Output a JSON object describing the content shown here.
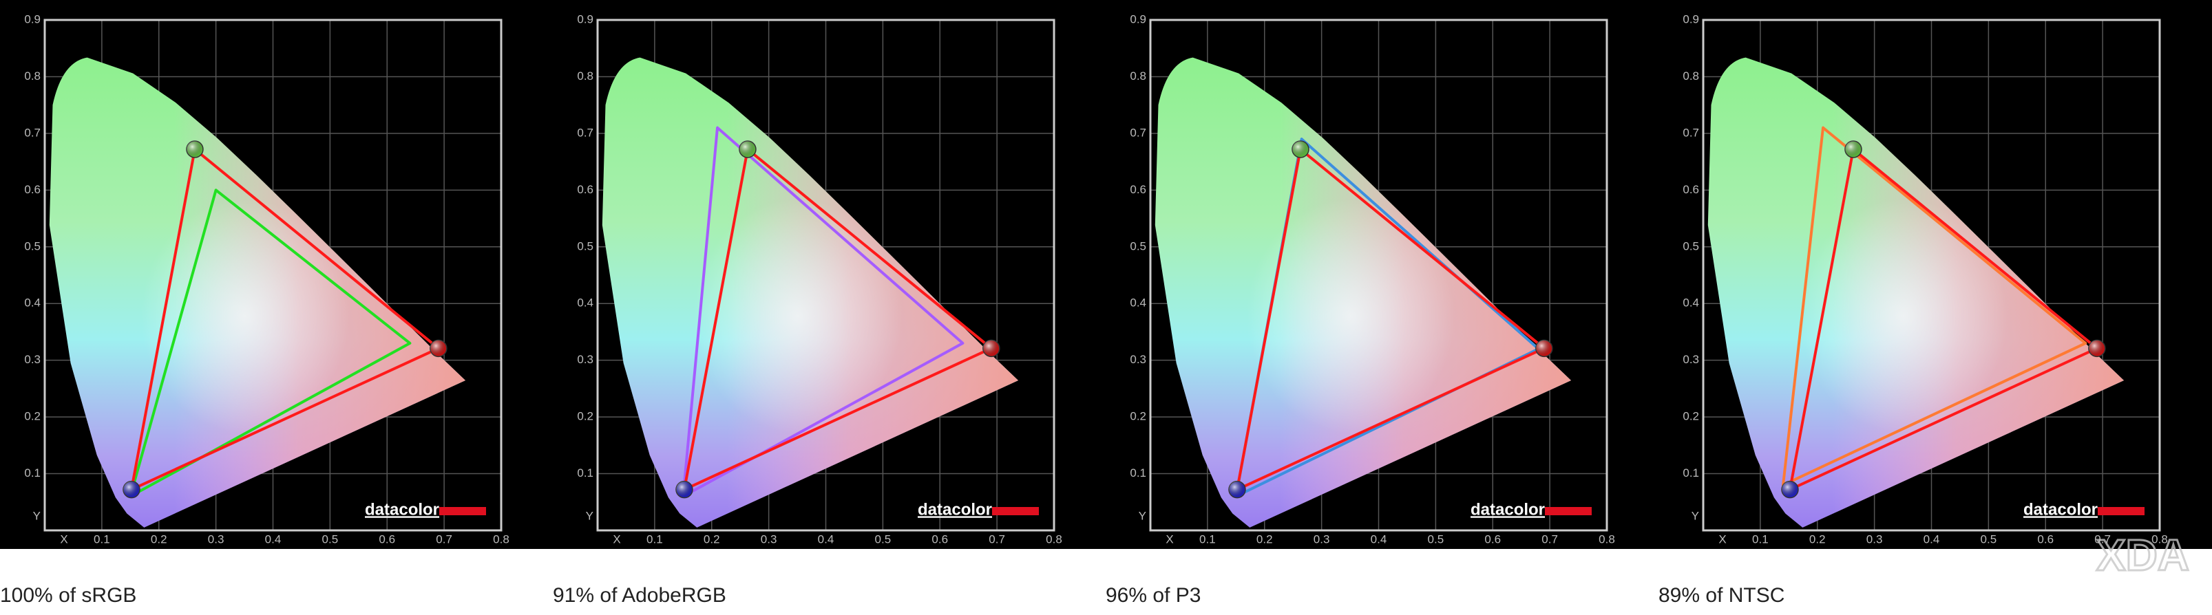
{
  "chart_data": [
    {
      "type": "gamut",
      "caption": "100% of sRGB",
      "x_label": "X",
      "y_label": "Y",
      "logo": "datacolor",
      "xlim": [
        0,
        0.8
      ],
      "ylim": [
        0,
        0.9
      ],
      "xticks": [
        0.1,
        0.2,
        0.3,
        0.4,
        0.5,
        0.6,
        0.7,
        0.8
      ],
      "yticks": [
        0.1,
        0.2,
        0.3,
        0.4,
        0.5,
        0.6,
        0.7,
        0.8,
        0.9
      ],
      "grid": true,
      "measured": {
        "color": "#ff1a1a",
        "x": [
          0.69,
          0.263,
          0.152
        ],
        "y": [
          0.321,
          0.672,
          0.072
        ]
      },
      "reference": {
        "color": "#22e022",
        "x": [
          0.64,
          0.3,
          0.15
        ],
        "y": [
          0.33,
          0.6,
          0.06
        ]
      }
    },
    {
      "type": "gamut",
      "caption": "91% of AdobeRGB",
      "x_label": "X",
      "y_label": "Y",
      "logo": "datacolor",
      "xlim": [
        0,
        0.8
      ],
      "ylim": [
        0,
        0.9
      ],
      "xticks": [
        0.1,
        0.2,
        0.3,
        0.4,
        0.5,
        0.6,
        0.7,
        0.8
      ],
      "yticks": [
        0.1,
        0.2,
        0.3,
        0.4,
        0.5,
        0.6,
        0.7,
        0.8,
        0.9
      ],
      "grid": true,
      "measured": {
        "color": "#ff1a1a",
        "x": [
          0.69,
          0.263,
          0.152
        ],
        "y": [
          0.321,
          0.672,
          0.072
        ]
      },
      "reference": {
        "color": "#a55cff",
        "x": [
          0.64,
          0.21,
          0.15
        ],
        "y": [
          0.33,
          0.71,
          0.06
        ]
      }
    },
    {
      "type": "gamut",
      "caption": "96% of P3",
      "x_label": "X",
      "y_label": "Y",
      "logo": "datacolor",
      "xlim": [
        0,
        0.8
      ],
      "ylim": [
        0,
        0.9
      ],
      "xticks": [
        0.1,
        0.2,
        0.3,
        0.4,
        0.5,
        0.6,
        0.7,
        0.8
      ],
      "yticks": [
        0.1,
        0.2,
        0.3,
        0.4,
        0.5,
        0.6,
        0.7,
        0.8,
        0.9
      ],
      "grid": true,
      "measured": {
        "color": "#ff1a1a",
        "x": [
          0.69,
          0.263,
          0.152
        ],
        "y": [
          0.321,
          0.672,
          0.072
        ]
      },
      "reference": {
        "color": "#3c8fe0",
        "x": [
          0.68,
          0.265,
          0.15
        ],
        "y": [
          0.32,
          0.69,
          0.06
        ]
      }
    },
    {
      "type": "gamut",
      "caption": "89% of NTSC",
      "x_label": "X",
      "y_label": "Y",
      "logo": "datacolor",
      "xlim": [
        0,
        0.8
      ],
      "ylim": [
        0,
        0.9
      ],
      "xticks": [
        0.1,
        0.2,
        0.3,
        0.4,
        0.5,
        0.6,
        0.7,
        0.8
      ],
      "yticks": [
        0.1,
        0.2,
        0.3,
        0.4,
        0.5,
        0.6,
        0.7,
        0.8,
        0.9
      ],
      "grid": true,
      "measured": {
        "color": "#ff1a1a",
        "x": [
          0.69,
          0.263,
          0.152
        ],
        "y": [
          0.321,
          0.672,
          0.072
        ]
      },
      "reference": {
        "color": "#ff7a33",
        "x": [
          0.67,
          0.21,
          0.14
        ],
        "y": [
          0.33,
          0.71,
          0.08
        ]
      }
    }
  ],
  "watermark": "XDA"
}
